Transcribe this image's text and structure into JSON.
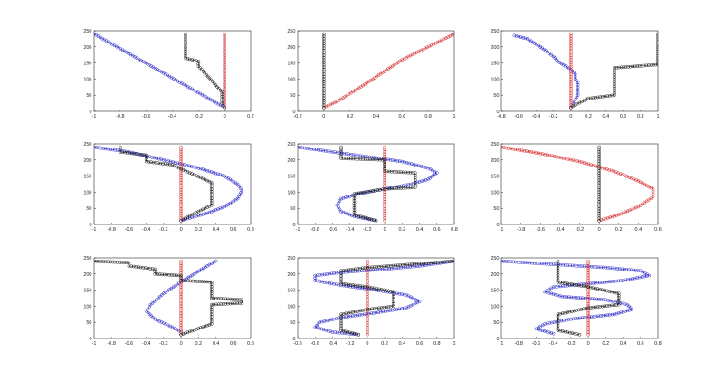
{
  "colors": {
    "blue": "#3333cc",
    "red": "#d83030",
    "black": "#202020",
    "axis": "#262626"
  },
  "chart_data": [
    {
      "type": "line",
      "xlim": [
        -1,
        0.2
      ],
      "ylim": [
        0,
        250
      ],
      "xticks": [
        -1,
        -0.8,
        -0.6,
        -0.4,
        -0.2,
        0,
        0.2
      ],
      "xtick_labels": [
        "-1",
        "-0.8",
        "-0.6",
        "-0.4",
        "-0.2",
        "0",
        "0.2"
      ],
      "yticks": [
        0,
        50,
        100,
        150,
        200,
        250
      ],
      "ytick_labels": [
        "0",
        "50",
        "100",
        "150",
        "200",
        "250"
      ],
      "series": [
        {
          "color": "blue",
          "x": [
            -1,
            0
          ],
          "y": [
            240,
            12
          ]
        },
        {
          "color": "red",
          "x": [
            0,
            0
          ],
          "y": [
            240,
            12
          ]
        },
        {
          "color": "black",
          "x": [
            -0.3,
            -0.3,
            -0.3,
            -0.2,
            -0.2,
            -0.02,
            -0.02,
            0
          ],
          "y": [
            240,
            200,
            165,
            155,
            140,
            60,
            25,
            12
          ]
        }
      ]
    },
    {
      "type": "line",
      "xlim": [
        -0.2,
        1
      ],
      "ylim": [
        0,
        250
      ],
      "xticks": [
        -0.2,
        0,
        0.2,
        0.4,
        0.6,
        0.8,
        1
      ],
      "xtick_labels": [
        "-0.2",
        "0",
        "0.2",
        "0.4",
        "0.6",
        "0.8",
        "1"
      ],
      "yticks": [
        0,
        50,
        100,
        150,
        200,
        250
      ],
      "ytick_labels": [
        "0",
        "50",
        "100",
        "150",
        "200",
        "250"
      ],
      "series": [
        {
          "color": "red",
          "x": [
            0,
            0.1,
            0.3,
            0.6,
            1
          ],
          "y": [
            12,
            30,
            80,
            160,
            240
          ]
        },
        {
          "color": "black",
          "x": [
            0,
            0
          ],
          "y": [
            240,
            12
          ]
        }
      ]
    },
    {
      "type": "line",
      "xlim": [
        -0.8,
        1
      ],
      "ylim": [
        0,
        250
      ],
      "xticks": [
        -0.8,
        -0.6,
        -0.4,
        -0.2,
        0,
        0.2,
        0.4,
        0.6,
        0.8,
        1
      ],
      "xtick_labels": [
        "-0.8",
        "-0.6",
        "-0.4",
        "-0.2",
        "0",
        "0.2",
        "0.4",
        "0.6",
        "0.8",
        "1"
      ],
      "yticks": [
        0,
        50,
        100,
        150,
        200,
        250
      ],
      "ytick_labels": [
        "0",
        "50",
        "100",
        "150",
        "200",
        "250"
      ],
      "series": [
        {
          "color": "blue",
          "x": [
            -0.65,
            -0.5,
            -0.35,
            -0.25,
            -0.2,
            -0.15,
            0,
            0.05,
            0.05,
            0.08,
            0.08,
            0
          ],
          "y": [
            235,
            225,
            200,
            180,
            170,
            155,
            130,
            115,
            100,
            90,
            50,
            12
          ]
        },
        {
          "color": "red",
          "x": [
            0,
            0
          ],
          "y": [
            240,
            12
          ]
        },
        {
          "color": "black",
          "x": [
            0,
            0.05,
            0.2,
            0.5,
            0.5,
            0.5,
            1,
            1,
            1
          ],
          "y": [
            12,
            20,
            40,
            50,
            120,
            135,
            145,
            200,
            240
          ]
        }
      ]
    },
    {
      "type": "line",
      "xlim": [
        -1,
        0.8
      ],
      "ylim": [
        0,
        250
      ],
      "xticks": [
        -1,
        -0.8,
        -0.6,
        -0.4,
        -0.2,
        0,
        0.2,
        0.4,
        0.6,
        0.8
      ],
      "xtick_labels": [
        "-1",
        "-0.8",
        "-0.6",
        "-0.4",
        "-0.2",
        "0",
        "0.2",
        "0.4",
        "0.6",
        "0.8"
      ],
      "yticks": [
        0,
        50,
        100,
        150,
        200,
        250
      ],
      "ytick_labels": [
        "0",
        "50",
        "100",
        "150",
        "200",
        "250"
      ],
      "series": [
        {
          "color": "blue",
          "x": [
            -1,
            -0.6,
            -0.2,
            0.2,
            0.5,
            0.65,
            0.7,
            0.65,
            0.5,
            0.3,
            0.1,
            0
          ],
          "y": [
            240,
            225,
            200,
            175,
            150,
            125,
            105,
            80,
            55,
            35,
            20,
            12
          ]
        },
        {
          "color": "red",
          "x": [
            0,
            0
          ],
          "y": [
            240,
            12
          ]
        },
        {
          "color": "black",
          "x": [
            -0.7,
            -0.7,
            -0.4,
            -0.4,
            -0.1,
            0.1,
            0.35,
            0.35,
            0.2,
            0.05,
            0
          ],
          "y": [
            240,
            225,
            215,
            195,
            185,
            160,
            130,
            60,
            40,
            20,
            12
          ]
        }
      ]
    },
    {
      "type": "line",
      "xlim": [
        -1,
        0.8
      ],
      "ylim": [
        0,
        250
      ],
      "xticks": [
        -1,
        -0.8,
        -0.6,
        -0.4,
        -0.2,
        0,
        0.2,
        0.4,
        0.6,
        0.8
      ],
      "xtick_labels": [
        "-1",
        "-0.8",
        "-0.6",
        "-0.4",
        "-0.2",
        "0",
        "0.2",
        "0.4",
        "0.6",
        "0.8"
      ],
      "yticks": [
        0,
        50,
        100,
        150,
        200,
        250
      ],
      "ytick_labels": [
        "0",
        "50",
        "100",
        "150",
        "200",
        "250"
      ],
      "series": [
        {
          "color": "blue",
          "x": [
            -1,
            -0.6,
            -0.2,
            0.2,
            0.5,
            0.6,
            0.5,
            0.3,
            0,
            -0.3,
            -0.5,
            -0.55,
            -0.5,
            -0.35,
            -0.2,
            -0.1
          ],
          "y": [
            240,
            225,
            210,
            195,
            175,
            160,
            140,
            125,
            110,
            95,
            80,
            60,
            40,
            25,
            17,
            12
          ]
        },
        {
          "color": "red",
          "x": [
            0,
            0
          ],
          "y": [
            240,
            12
          ]
        },
        {
          "color": "black",
          "x": [
            -0.5,
            -0.5,
            0,
            0,
            0.35,
            0.35,
            0,
            -0.35,
            -0.35,
            -0.1
          ],
          "y": [
            240,
            205,
            200,
            165,
            160,
            115,
            110,
            95,
            30,
            12
          ]
        }
      ]
    },
    {
      "type": "line",
      "xlim": [
        -1,
        0.6
      ],
      "ylim": [
        0,
        250
      ],
      "xticks": [
        -1,
        -0.8,
        -0.6,
        -0.4,
        -0.2,
        0,
        0.2,
        0.4,
        0.6
      ],
      "xtick_labels": [
        "-1",
        "-0.8",
        "-0.6",
        "-0.4",
        "-0.2",
        "0",
        "0.2",
        "0.4",
        "0.6"
      ],
      "yticks": [
        0,
        50,
        100,
        150,
        200,
        250
      ],
      "ytick_labels": [
        "0",
        "50",
        "100",
        "150",
        "200",
        "250"
      ],
      "series": [
        {
          "color": "red",
          "x": [
            -1,
            -0.6,
            -0.2,
            0.15,
            0.4,
            0.55,
            0.55,
            0.4,
            0.2,
            0
          ],
          "y": [
            240,
            220,
            195,
            165,
            135,
            110,
            85,
            55,
            30,
            12
          ]
        },
        {
          "color": "black",
          "x": [
            0,
            0
          ],
          "y": [
            240,
            12
          ]
        }
      ]
    },
    {
      "type": "line",
      "xlim": [
        -1,
        0.8
      ],
      "ylim": [
        0,
        250
      ],
      "xticks": [
        -1,
        -0.8,
        -0.6,
        -0.4,
        -0.2,
        0,
        0.2,
        0.4,
        0.6,
        0.8
      ],
      "xtick_labels": [
        "-1",
        "-0.8",
        "-0.6",
        "-0.4",
        "-0.2",
        "0",
        "0.2",
        "0.4",
        "0.6",
        "0.8"
      ],
      "yticks": [
        0,
        50,
        100,
        150,
        200,
        250
      ],
      "ytick_labels": [
        "0",
        "50",
        "100",
        "150",
        "200",
        "250"
      ],
      "series": [
        {
          "color": "blue",
          "x": [
            0.4,
            0.3,
            0.15,
            0,
            -0.2,
            -0.35,
            -0.4,
            -0.3,
            -0.1,
            0,
            0
          ],
          "y": [
            240,
            225,
            200,
            175,
            140,
            105,
            85,
            60,
            35,
            20,
            12
          ]
        },
        {
          "color": "red",
          "x": [
            0,
            0
          ],
          "y": [
            240,
            12
          ]
        },
        {
          "color": "black",
          "x": [
            -1,
            -0.6,
            -0.6,
            -0.3,
            -0.3,
            0,
            0,
            0.35,
            0.35,
            0.7,
            0.7,
            0.35,
            0.35,
            0
          ],
          "y": [
            240,
            235,
            225,
            215,
            200,
            195,
            180,
            175,
            125,
            120,
            110,
            105,
            45,
            12
          ]
        }
      ]
    },
    {
      "type": "line",
      "xlim": [
        -0.8,
        1
      ],
      "ylim": [
        0,
        250
      ],
      "xticks": [
        -0.8,
        -0.6,
        -0.4,
        -0.2,
        0,
        0.2,
        0.4,
        0.6,
        0.8,
        1
      ],
      "xtick_labels": [
        "-0.8",
        "-0.6",
        "-0.4",
        "-0.2",
        "0",
        "0.2",
        "0.4",
        "0.6",
        "0.8",
        "1"
      ],
      "yticks": [
        0,
        50,
        100,
        150,
        200,
        250
      ],
      "ytick_labels": [
        "0",
        "50",
        "100",
        "150",
        "200",
        "250"
      ],
      "series": [
        {
          "color": "blue",
          "x": [
            1,
            0.6,
            0.2,
            -0.3,
            -0.6,
            -0.6,
            -0.3,
            0.1,
            0.45,
            0.6,
            0.45,
            0.1,
            -0.3,
            -0.55,
            -0.6,
            -0.4,
            -0.1
          ],
          "y": [
            240,
            225,
            215,
            205,
            195,
            180,
            165,
            150,
            135,
            115,
            95,
            80,
            65,
            50,
            35,
            20,
            12
          ]
        },
        {
          "color": "red",
          "x": [
            0,
            0
          ],
          "y": [
            240,
            12
          ]
        },
        {
          "color": "black",
          "x": [
            1,
            0,
            -0.3,
            -0.3,
            0,
            0.3,
            0.3,
            0,
            -0.3,
            -0.3,
            -0.1
          ],
          "y": [
            240,
            220,
            210,
            170,
            160,
            145,
            100,
            90,
            75,
            25,
            12
          ]
        }
      ]
    },
    {
      "type": "line",
      "xlim": [
        -1,
        0.8
      ],
      "ylim": [
        0,
        250
      ],
      "xticks": [
        -1,
        -0.8,
        -0.6,
        -0.4,
        -0.2,
        0,
        0.2,
        0.4,
        0.6,
        0.8
      ],
      "xtick_labels": [
        "-1",
        "-0.8",
        "-0.6",
        "-0.4",
        "-0.2",
        "0",
        "0.2",
        "0.4",
        "0.6",
        "0.8"
      ],
      "yticks": [
        0,
        50,
        100,
        150,
        200,
        250
      ],
      "ytick_labels": [
        "0",
        "50",
        "100",
        "150",
        "200",
        "250"
      ],
      "series": [
        {
          "color": "blue",
          "x": [
            -1,
            -0.4,
            0.2,
            0.6,
            0.7,
            0.4,
            0,
            -0.4,
            -0.5,
            -0.3,
            0.2,
            0.45,
            0.5,
            0.3,
            -0.2,
            -0.5,
            -0.6,
            -0.4
          ],
          "y": [
            240,
            230,
            220,
            210,
            195,
            180,
            170,
            160,
            145,
            130,
            120,
            105,
            90,
            75,
            60,
            45,
            30,
            15
          ]
        },
        {
          "color": "red",
          "x": [
            0,
            0
          ],
          "y": [
            240,
            12
          ]
        },
        {
          "color": "black",
          "x": [
            -0.35,
            -0.35,
            0,
            0.35,
            0.35,
            0,
            -0.35,
            -0.35,
            -0.1
          ],
          "y": [
            240,
            175,
            160,
            140,
            105,
            95,
            75,
            25,
            12
          ]
        }
      ]
    }
  ]
}
